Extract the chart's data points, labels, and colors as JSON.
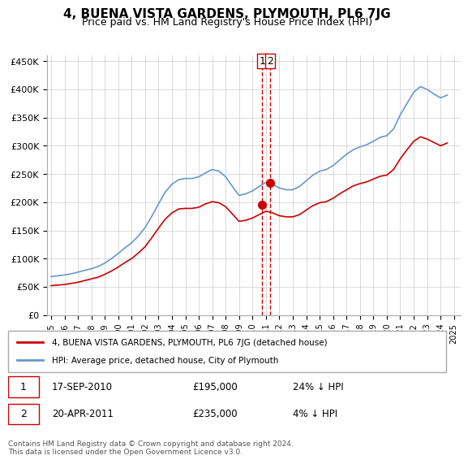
{
  "title": "4, BUENA VISTA GARDENS, PLYMOUTH, PL6 7JG",
  "subtitle": "Price paid vs. HM Land Registry's House Price Index (HPI)",
  "hpi_color": "#6699cc",
  "price_color": "#cc0000",
  "dashed_line_color": "#cc0000",
  "ylim": [
    0,
    460000
  ],
  "yticks": [
    0,
    50000,
    100000,
    150000,
    200000,
    250000,
    300000,
    350000,
    400000,
    450000
  ],
  "xlim_start": 1995.0,
  "xlim_end": 2025.5,
  "transaction1_x": 2010.72,
  "transaction1_y": 195000,
  "transaction2_x": 2011.31,
  "transaction2_y": 235000,
  "legend_price_label": "4, BUENA VISTA GARDENS, PLYMOUTH, PL6 7JG (detached house)",
  "legend_hpi_label": "HPI: Average price, detached house, City of Plymouth",
  "annotation1": "1   17-SEP-2010        £195,000        24% ↓ HPI",
  "annotation2": "2   20-APR-2011        £235,000          4% ↓ HPI",
  "footnote": "Contains HM Land Registry data © Crown copyright and database right 2024.\nThis data is licensed under the Open Government Licence v3.0.",
  "background_color": "#ffffff",
  "grid_color": "#cccccc",
  "hpi_years": [
    1995,
    1995.5,
    1996,
    1996.5,
    1997,
    1997.5,
    1998,
    1998.5,
    1999,
    1999.5,
    2000,
    2000.5,
    2001,
    2001.5,
    2002,
    2002.5,
    2003,
    2003.5,
    2004,
    2004.5,
    2005,
    2005.5,
    2006,
    2006.5,
    2007,
    2007.5,
    2008,
    2008.5,
    2009,
    2009.5,
    2010,
    2010.5,
    2011,
    2011.5,
    2012,
    2012.5,
    2013,
    2013.5,
    2014,
    2014.5,
    2015,
    2015.5,
    2016,
    2016.5,
    2017,
    2017.5,
    2018,
    2018.5,
    2019,
    2019.5,
    2020,
    2020.5,
    2021,
    2021.5,
    2022,
    2022.5,
    2023,
    2023.5,
    2024,
    2024.5
  ],
  "hpi_values": [
    68000,
    69500,
    71000,
    73000,
    76000,
    79000,
    82000,
    86000,
    92000,
    100000,
    109000,
    119000,
    128000,
    140000,
    155000,
    175000,
    197000,
    218000,
    232000,
    240000,
    242000,
    242000,
    245000,
    252000,
    258000,
    255000,
    245000,
    228000,
    212000,
    215000,
    220000,
    228000,
    235000,
    232000,
    225000,
    222000,
    222000,
    228000,
    238000,
    248000,
    255000,
    258000,
    265000,
    275000,
    285000,
    293000,
    298000,
    302000,
    308000,
    315000,
    318000,
    330000,
    355000,
    375000,
    395000,
    405000,
    400000,
    392000,
    385000,
    390000
  ],
  "price_years": [
    1995,
    1995.5,
    1996,
    1996.5,
    1997,
    1997.5,
    1998,
    1998.5,
    1999,
    1999.5,
    2000,
    2000.5,
    2001,
    2001.5,
    2002,
    2002.5,
    2003,
    2003.5,
    2004,
    2004.5,
    2005,
    2005.5,
    2006,
    2006.5,
    2007,
    2007.5,
    2008,
    2008.5,
    2009,
    2009.5,
    2010,
    2010.5,
    2011,
    2011.5,
    2012,
    2012.5,
    2013,
    2013.5,
    2014,
    2014.5,
    2015,
    2015.5,
    2016,
    2016.5,
    2017,
    2017.5,
    2018,
    2018.5,
    2019,
    2019.5,
    2020,
    2020.5,
    2021,
    2021.5,
    2022,
    2022.5,
    2023,
    2023.5,
    2024,
    2024.5
  ],
  "price_values": [
    52000,
    53000,
    54000,
    56000,
    58000,
    61000,
    64000,
    67000,
    72000,
    78000,
    85000,
    93000,
    100000,
    110000,
    121000,
    137000,
    154000,
    170000,
    181000,
    188000,
    189000,
    189000,
    191000,
    197000,
    201000,
    199000,
    192000,
    179000,
    166000,
    168000,
    172000,
    178000,
    184000,
    181000,
    176000,
    174000,
    174000,
    178000,
    186000,
    194000,
    199000,
    201000,
    207000,
    215000,
    222000,
    229000,
    233000,
    236000,
    241000,
    246000,
    248000,
    258000,
    277000,
    293000,
    308000,
    316000,
    312000,
    306000,
    300000,
    305000
  ]
}
